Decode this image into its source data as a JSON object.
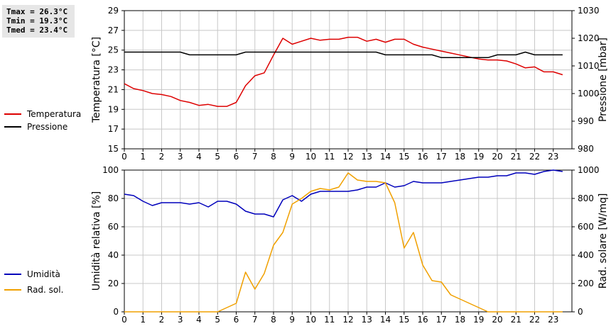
{
  "stats": {
    "tmax": "Tmax = 26.3°C",
    "tmin": "Tmin = 19.3°C",
    "tmed": "Tmed = 23.4°C"
  },
  "chart_data": [
    {
      "type": "line",
      "xlim": [
        0,
        24
      ],
      "x_ticks": [
        "0",
        "1",
        "2",
        "3",
        "4",
        "5",
        "6",
        "7",
        "8",
        "9",
        "10",
        "11",
        "12",
        "13",
        "14",
        "15",
        "16",
        "17",
        "18",
        "19",
        "20",
        "21",
        "22",
        "23"
      ],
      "ylabel": "Temperatura [°C]",
      "ylim": [
        15,
        29
      ],
      "y_ticks": [
        "15",
        "17",
        "19",
        "21",
        "23",
        "25",
        "27",
        "29"
      ],
      "y2label": "Pressione [mbar]",
      "y2lim": [
        980,
        1030
      ],
      "y2_ticks": [
        "980",
        "990",
        "1000",
        "1010",
        "1020",
        "1030"
      ],
      "grid": true,
      "series": [
        {
          "name": "Temperatura",
          "color": "#dd0000",
          "axis": "left",
          "x": [
            0,
            0.5,
            1,
            1.5,
            2,
            2.5,
            3,
            3.5,
            4,
            4.5,
            5,
            5.5,
            6,
            6.5,
            7,
            7.5,
            8,
            8.5,
            9,
            9.5,
            10,
            10.5,
            11,
            11.5,
            12,
            12.5,
            13,
            13.5,
            14,
            14.5,
            15,
            15.5,
            16,
            16.5,
            17,
            17.5,
            18,
            18.5,
            19,
            19.5,
            20,
            20.5,
            21,
            21.5,
            22,
            22.5,
            23,
            23.5
          ],
          "values": [
            21.6,
            21.1,
            20.9,
            20.6,
            20.5,
            20.3,
            19.9,
            19.7,
            19.4,
            19.5,
            19.3,
            19.3,
            19.7,
            21.4,
            22.4,
            22.7,
            24.5,
            26.2,
            25.6,
            25.9,
            26.2,
            26.0,
            26.1,
            26.1,
            26.3,
            26.3,
            25.9,
            26.1,
            25.8,
            26.1,
            26.1,
            25.6,
            25.3,
            25.1,
            24.9,
            24.7,
            24.5,
            24.3,
            24.1,
            24.0,
            24.0,
            23.9,
            23.6,
            23.2,
            23.3,
            22.8,
            22.8,
            22.5
          ]
        },
        {
          "name": "Pressione",
          "color": "#000000",
          "axis": "right",
          "x": [
            0,
            0.5,
            1,
            1.5,
            2,
            2.5,
            3,
            3.5,
            4,
            4.5,
            5,
            5.5,
            6,
            6.5,
            7,
            7.5,
            8,
            8.5,
            9,
            9.5,
            10,
            10.5,
            11,
            11.5,
            12,
            12.5,
            13,
            13.5,
            14,
            14.5,
            15,
            15.5,
            16,
            16.5,
            17,
            17.5,
            18,
            18.5,
            19,
            19.5,
            20,
            20.5,
            21,
            21.5,
            22,
            22.5,
            23,
            23.5
          ],
          "values": [
            1015,
            1015,
            1015,
            1015,
            1015,
            1015,
            1015,
            1014,
            1014,
            1014,
            1014,
            1014,
            1014,
            1015,
            1015,
            1015,
            1015,
            1015,
            1015,
            1015,
            1015,
            1015,
            1015,
            1015,
            1015,
            1015,
            1015,
            1015,
            1014,
            1014,
            1014,
            1014,
            1014,
            1014,
            1013,
            1013,
            1013,
            1013,
            1013,
            1013,
            1014,
            1014,
            1014,
            1015,
            1014,
            1014,
            1014,
            1014
          ]
        }
      ]
    },
    {
      "type": "line",
      "xlim": [
        0,
        24
      ],
      "x_ticks": [
        "0",
        "1",
        "2",
        "3",
        "4",
        "5",
        "6",
        "7",
        "8",
        "9",
        "10",
        "11",
        "12",
        "13",
        "14",
        "15",
        "16",
        "17",
        "18",
        "19",
        "20",
        "21",
        "22",
        "23"
      ],
      "ylabel": "Umidità relativa [%]",
      "ylim": [
        0,
        100
      ],
      "y_ticks": [
        "0",
        "20",
        "40",
        "60",
        "80",
        "100"
      ],
      "y2label": "Rad. solare [W/mq]",
      "y2lim": [
        0,
        1000
      ],
      "y2_ticks": [
        "0",
        "200",
        "400",
        "600",
        "800",
        "1000"
      ],
      "grid": true,
      "series": [
        {
          "name": "Umidità",
          "color": "#0000bb",
          "axis": "left",
          "x": [
            0,
            0.5,
            1,
            1.5,
            2,
            2.5,
            3,
            3.5,
            4,
            4.5,
            5,
            5.5,
            6,
            6.5,
            7,
            7.5,
            8,
            8.5,
            9,
            9.5,
            10,
            10.5,
            11,
            11.5,
            12,
            12.5,
            13,
            13.5,
            14,
            14.5,
            15,
            15.5,
            16,
            16.5,
            17,
            17.5,
            18,
            18.5,
            19,
            19.5,
            20,
            20.5,
            21,
            21.5,
            22,
            22.5,
            23,
            23.5
          ],
          "values": [
            83,
            82,
            78,
            75,
            77,
            77,
            77,
            76,
            77,
            74,
            78,
            78,
            76,
            71,
            69,
            69,
            67,
            79,
            82,
            78,
            83,
            85,
            85,
            85,
            85,
            86,
            88,
            88,
            91,
            88,
            89,
            92,
            91,
            91,
            91,
            92,
            93,
            94,
            95,
            95,
            96,
            96,
            98,
            98,
            97,
            99,
            100,
            99
          ]
        },
        {
          "name": "Rad. sol.",
          "color": "#f0a000",
          "axis": "right",
          "x": [
            0,
            0.5,
            1,
            1.5,
            2,
            2.5,
            3,
            3.5,
            4,
            4.5,
            5,
            5.5,
            6,
            6.5,
            7,
            7.5,
            8,
            8.5,
            9,
            9.5,
            10,
            10.5,
            11,
            11.5,
            12,
            12.5,
            13,
            13.5,
            14,
            14.5,
            15,
            15.5,
            16,
            16.5,
            17,
            17.5,
            18,
            18.5,
            19,
            19.5,
            20,
            20.5,
            21,
            21.5,
            22,
            22.5,
            23,
            23.5
          ],
          "values": [
            0,
            0,
            0,
            0,
            0,
            0,
            0,
            0,
            0,
            0,
            0,
            30,
            60,
            280,
            160,
            270,
            470,
            560,
            760,
            800,
            850,
            870,
            860,
            880,
            980,
            930,
            920,
            920,
            910,
            770,
            450,
            560,
            330,
            220,
            210,
            120,
            90,
            60,
            30,
            0,
            0,
            0,
            0,
            0,
            0,
            0,
            0,
            0
          ]
        }
      ]
    }
  ]
}
